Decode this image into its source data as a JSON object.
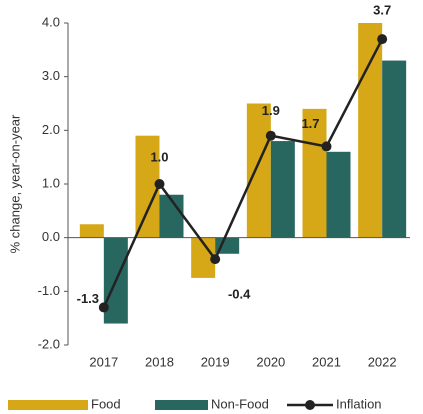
{
  "chart_data": {
    "type": "bar",
    "y_label": "% change, year-on-year",
    "categories": [
      "2017",
      "2018",
      "2019",
      "2020",
      "2021",
      "2022"
    ],
    "series": [
      {
        "name": "Food",
        "type": "bar",
        "color": "#d6a716",
        "values": [
          0.25,
          1.9,
          -0.75,
          2.5,
          2.4,
          4.0
        ]
      },
      {
        "name": "Non-Food",
        "type": "bar",
        "color": "#286660",
        "values": [
          -1.6,
          0.8,
          -0.3,
          1.8,
          1.6,
          3.3
        ]
      },
      {
        "name": "Inflation",
        "type": "line",
        "color": "#222222",
        "values": [
          -1.3,
          1.0,
          -0.4,
          1.9,
          1.7,
          3.7
        ],
        "value_labels": [
          "-1.3",
          "1.0",
          "-0.4",
          "1.9",
          "1.7",
          "3.7"
        ]
      }
    ],
    "ylim": [
      -2,
      4
    ],
    "yticks": [
      {
        "value": -2,
        "label": "-2.0"
      },
      {
        "value": -1,
        "label": "-1.0"
      },
      {
        "value": 0,
        "label": "0.0"
      },
      {
        "value": 1,
        "label": "1.0"
      },
      {
        "value": 2,
        "label": "2.0"
      },
      {
        "value": 3,
        "label": "3.0"
      },
      {
        "value": 4,
        "label": "4.0"
      }
    ],
    "legend": "bottom"
  }
}
